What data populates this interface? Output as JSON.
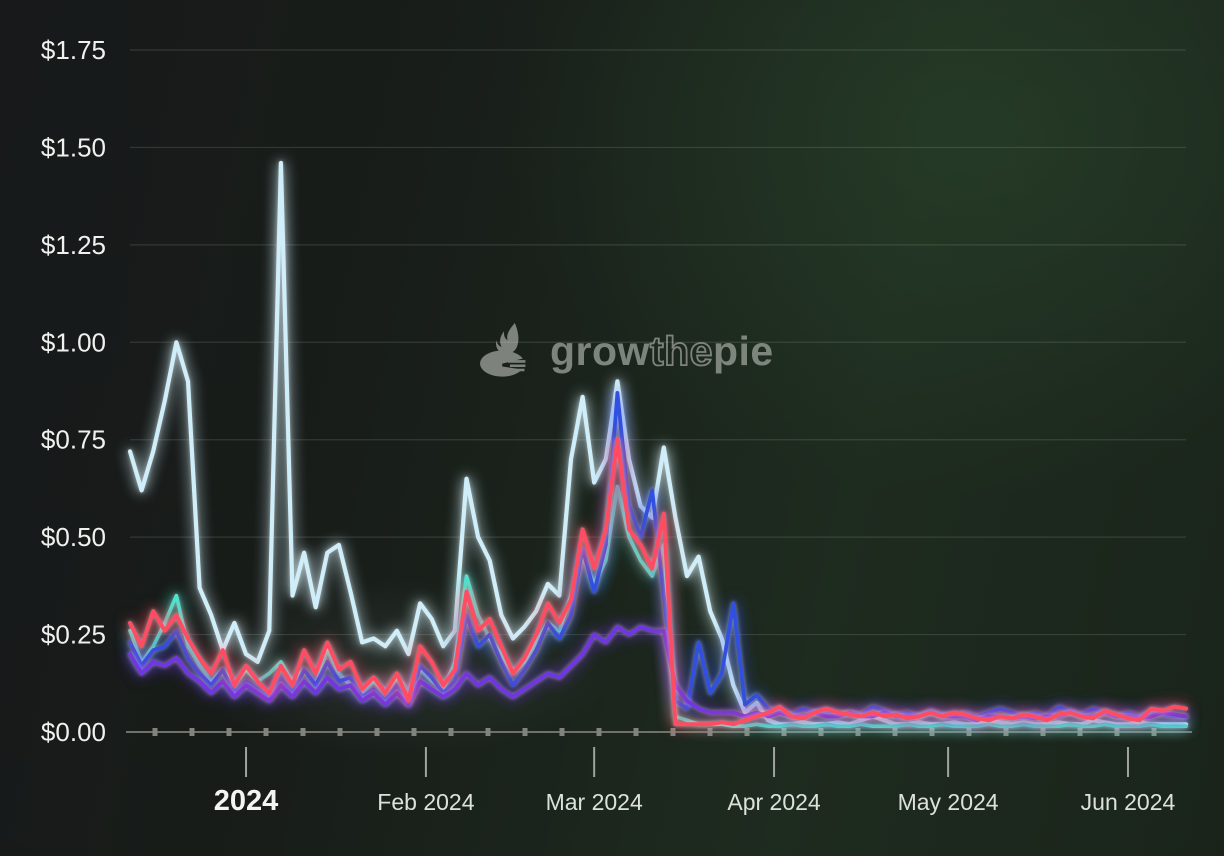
{
  "watermark": {
    "grow": "grow",
    "the": "the",
    "pie": "pie",
    "color": "#8f958e"
  },
  "colors": {
    "background_left": "#17191a",
    "background_green": "#1e2b1f",
    "grid": "rgba(205,220,208,0.15)",
    "axis": "#6e726b",
    "minor_tick": "#80847d",
    "month_tick": "#a0a49e",
    "y_label": "#eef1ed",
    "x_label": "#dde1dc",
    "x_label_bold": "#f3f5f2"
  },
  "chart_data": {
    "type": "line",
    "title": "",
    "xlabel": "",
    "ylabel": "",
    "ylim": [
      0,
      1.75
    ],
    "grid": "horizontal",
    "legend_position": "none",
    "x_step_days": 2,
    "y_ticks": [
      {
        "label": "$1.75",
        "value": 1.75
      },
      {
        "label": "$1.50",
        "value": 1.5
      },
      {
        "label": "$1.25",
        "value": 1.25
      },
      {
        "label": "$1.00",
        "value": 1.0
      },
      {
        "label": "$0.75",
        "value": 0.75
      },
      {
        "label": "$0.50",
        "value": 0.5
      },
      {
        "label": "$0.25",
        "value": 0.25
      },
      {
        "label": "$0.00",
        "value": 0.0
      }
    ],
    "x_ticks": [
      {
        "label": "2024",
        "day": 20,
        "bold": true
      },
      {
        "label": "Feb 2024",
        "day": 51,
        "bold": false
      },
      {
        "label": "Mar 2024",
        "day": 80,
        "bold": false
      },
      {
        "label": "Apr 2024",
        "day": 111,
        "bold": false
      },
      {
        "label": "May 2024",
        "day": 141,
        "bold": false
      },
      {
        "label": "Jun 2024",
        "day": 172,
        "bold": false
      }
    ],
    "series": [
      {
        "name": "light-blue-line",
        "color": "#cfeef9",
        "width": 4.2,
        "values": [
          0.72,
          0.62,
          0.72,
          0.85,
          1.0,
          0.9,
          0.37,
          0.3,
          0.21,
          0.28,
          0.2,
          0.18,
          0.26,
          1.46,
          0.35,
          0.46,
          0.32,
          0.46,
          0.48,
          0.36,
          0.23,
          0.24,
          0.22,
          0.26,
          0.2,
          0.33,
          0.29,
          0.22,
          0.26,
          0.65,
          0.5,
          0.44,
          0.3,
          0.24,
          0.27,
          0.31,
          0.38,
          0.35,
          0.7,
          0.86,
          0.64,
          0.7,
          0.9,
          0.7,
          0.58,
          0.55,
          0.73,
          0.55,
          0.4,
          0.45,
          0.31,
          0.24,
          0.12,
          0.05,
          0.075,
          0.03,
          0.02,
          0.02,
          0.025,
          0.02,
          0.02,
          0.025,
          0.02,
          0.03,
          0.04,
          0.03,
          0.02,
          0.02,
          0.025,
          0.02,
          0.02,
          0.025,
          0.02,
          0.02,
          0.03,
          0.025,
          0.02,
          0.025,
          0.02,
          0.02,
          0.025,
          0.02,
          0.02,
          0.03,
          0.025,
          0.02,
          0.02,
          0.025,
          0.02,
          0.02,
          0.02,
          0.02
        ]
      },
      {
        "name": "teal-line",
        "color": "#4fe3cf",
        "width": 3.6,
        "values": [
          0.26,
          0.18,
          0.22,
          0.28,
          0.35,
          0.22,
          0.17,
          0.13,
          0.16,
          0.12,
          0.16,
          0.13,
          0.15,
          0.18,
          0.13,
          0.16,
          0.12,
          0.21,
          0.15,
          0.12,
          0.1,
          0.13,
          0.1,
          0.14,
          0.11,
          0.16,
          0.13,
          0.11,
          0.18,
          0.4,
          0.3,
          0.24,
          0.2,
          0.15,
          0.18,
          0.23,
          0.28,
          0.26,
          0.35,
          0.45,
          0.38,
          0.44,
          0.63,
          0.5,
          0.44,
          0.4,
          0.48,
          0.04,
          0.03,
          0.02,
          0.02,
          0.02,
          0.015,
          0.015,
          0.02,
          0.015,
          0.015,
          0.02,
          0.015,
          0.015,
          0.02,
          0.015,
          0.015,
          0.02,
          0.015,
          0.015,
          0.015,
          0.02,
          0.015,
          0.015,
          0.02,
          0.015,
          0.015,
          0.015,
          0.02,
          0.015,
          0.015,
          0.02,
          0.015,
          0.015,
          0.015,
          0.02,
          0.015,
          0.015,
          0.02,
          0.015,
          0.015,
          0.015,
          0.02,
          0.015,
          0.015,
          0.015
        ]
      },
      {
        "name": "blue-line",
        "color": "#3150e0",
        "width": 3.8,
        "values": [
          0.23,
          0.17,
          0.21,
          0.22,
          0.26,
          0.19,
          0.15,
          0.12,
          0.16,
          0.1,
          0.13,
          0.11,
          0.09,
          0.14,
          0.1,
          0.16,
          0.12,
          0.18,
          0.13,
          0.14,
          0.09,
          0.11,
          0.08,
          0.12,
          0.07,
          0.17,
          0.14,
          0.1,
          0.13,
          0.3,
          0.22,
          0.25,
          0.18,
          0.12,
          0.16,
          0.21,
          0.28,
          0.24,
          0.3,
          0.47,
          0.36,
          0.48,
          0.87,
          0.58,
          0.5,
          0.62,
          0.35,
          0.08,
          0.06,
          0.23,
          0.1,
          0.15,
          0.33,
          0.07,
          0.095,
          0.06,
          0.05,
          0.045,
          0.06,
          0.05,
          0.055,
          0.045,
          0.05,
          0.045,
          0.065,
          0.055,
          0.045,
          0.05,
          0.04,
          0.055,
          0.045,
          0.04,
          0.05,
          0.04,
          0.05,
          0.06,
          0.05,
          0.04,
          0.05,
          0.04,
          0.065,
          0.055,
          0.045,
          0.06,
          0.05,
          0.04,
          0.05,
          0.04,
          0.05,
          0.045,
          0.04,
          0.04
        ]
      },
      {
        "name": "purple-line",
        "color": "#7136e3",
        "width": 4.0,
        "values": [
          0.2,
          0.15,
          0.18,
          0.17,
          0.19,
          0.15,
          0.13,
          0.1,
          0.13,
          0.09,
          0.12,
          0.1,
          0.08,
          0.12,
          0.09,
          0.13,
          0.1,
          0.14,
          0.11,
          0.12,
          0.08,
          0.1,
          0.07,
          0.1,
          0.07,
          0.13,
          0.11,
          0.09,
          0.11,
          0.15,
          0.12,
          0.14,
          0.11,
          0.09,
          0.11,
          0.13,
          0.15,
          0.14,
          0.17,
          0.2,
          0.25,
          0.23,
          0.27,
          0.25,
          0.27,
          0.26,
          0.26,
          0.12,
          0.08,
          0.06,
          0.05,
          0.05,
          0.05,
          0.04,
          0.05,
          0.04,
          0.05,
          0.04,
          0.04,
          0.05,
          0.04,
          0.04,
          0.05,
          0.04,
          0.04,
          0.05,
          0.04,
          0.04,
          0.04,
          0.05,
          0.04,
          0.04,
          0.04,
          0.03,
          0.04,
          0.04,
          0.035,
          0.04,
          0.035,
          0.04,
          0.04,
          0.05,
          0.04,
          0.04,
          0.05,
          0.04,
          0.04,
          0.035,
          0.04,
          0.05,
          0.045,
          0.04
        ]
      },
      {
        "name": "red-line",
        "color": "#fe4d63",
        "width": 4.0,
        "values": [
          0.28,
          0.22,
          0.31,
          0.26,
          0.3,
          0.24,
          0.19,
          0.15,
          0.21,
          0.12,
          0.17,
          0.13,
          0.1,
          0.17,
          0.12,
          0.21,
          0.15,
          0.23,
          0.16,
          0.18,
          0.11,
          0.14,
          0.1,
          0.15,
          0.08,
          0.22,
          0.18,
          0.12,
          0.16,
          0.36,
          0.26,
          0.29,
          0.22,
          0.15,
          0.19,
          0.25,
          0.33,
          0.28,
          0.34,
          0.52,
          0.42,
          0.52,
          0.75,
          0.52,
          0.48,
          0.42,
          0.56,
          0.02,
          0.02,
          0.02,
          0.02,
          0.025,
          0.02,
          0.03,
          0.04,
          0.05,
          0.065,
          0.04,
          0.035,
          0.05,
          0.06,
          0.05,
          0.045,
          0.04,
          0.05,
          0.04,
          0.045,
          0.035,
          0.04,
          0.05,
          0.04,
          0.05,
          0.045,
          0.035,
          0.03,
          0.04,
          0.035,
          0.045,
          0.04,
          0.03,
          0.045,
          0.05,
          0.04,
          0.035,
          0.055,
          0.045,
          0.035,
          0.03,
          0.06,
          0.055,
          0.065,
          0.06
        ]
      }
    ]
  }
}
